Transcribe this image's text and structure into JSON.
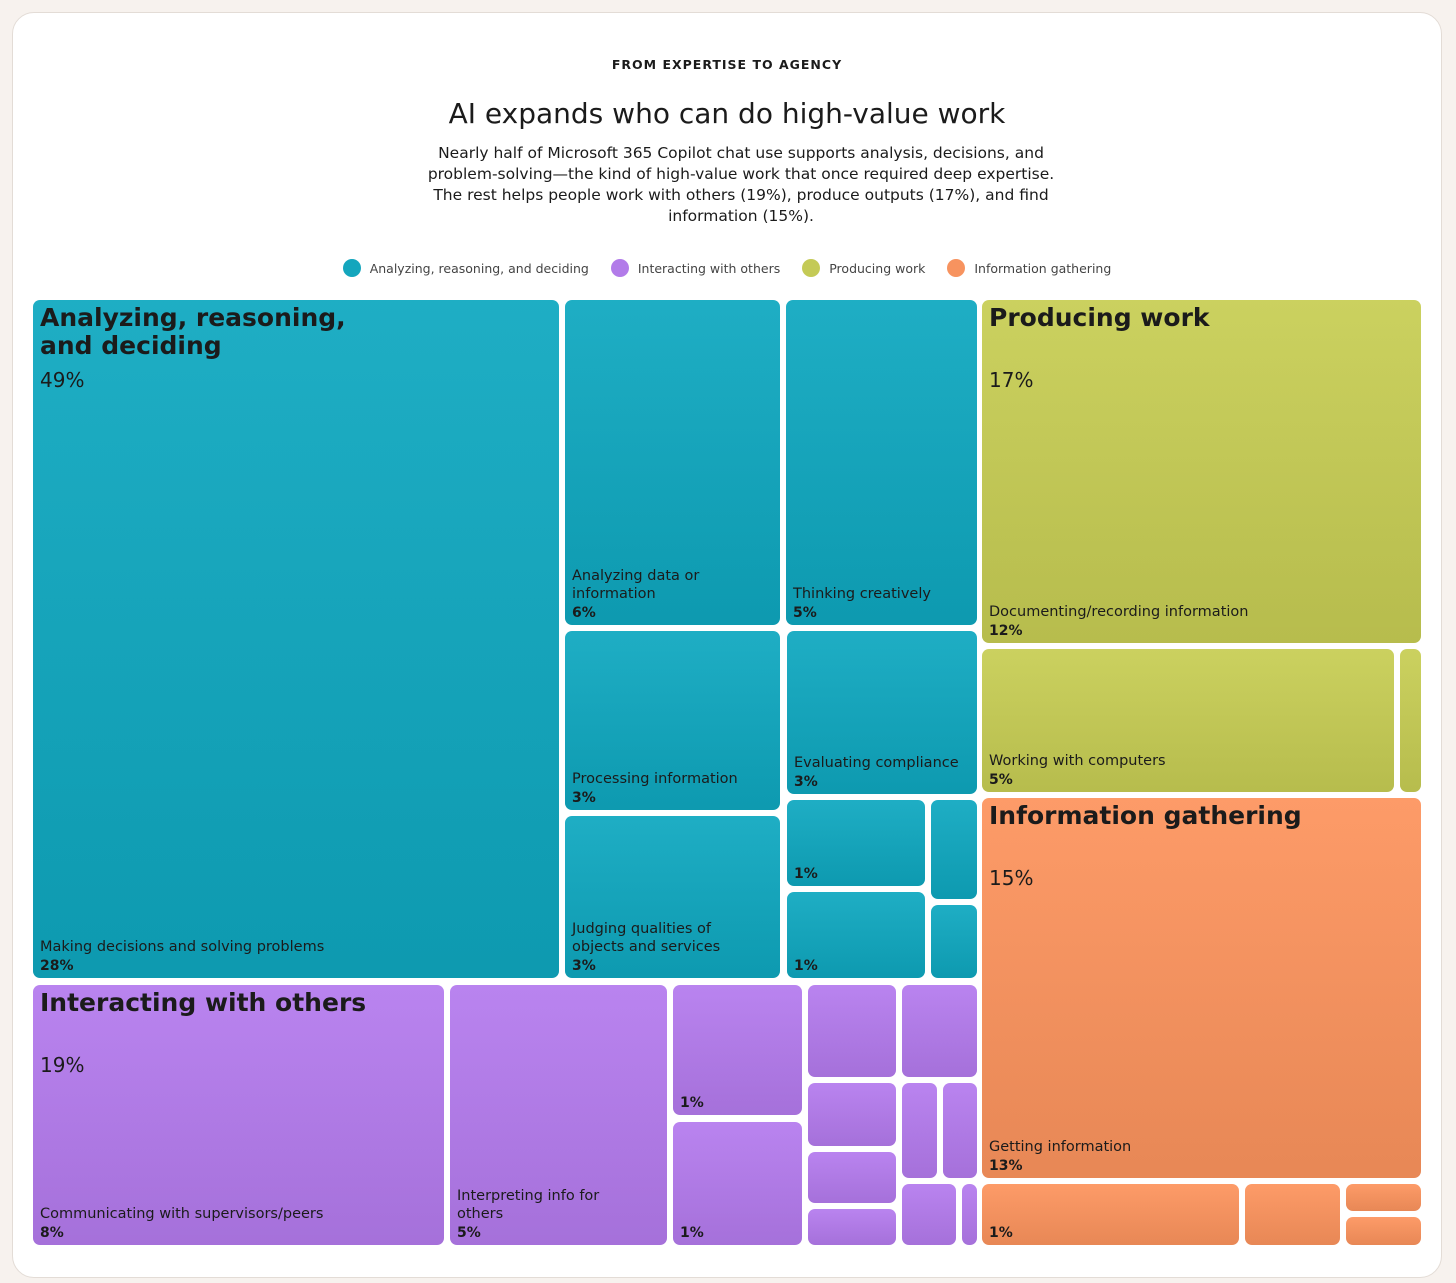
{
  "chart_data": {
    "type": "treemap",
    "kicker": "FROM EXPERTISE TO AGENCY",
    "title": "AI expands who can do high-value work",
    "subtitle": "Nearly half of Microsoft 365 Copilot chat use supports analysis, decisions, and problem-solving—the kind of high-value work that once required deep expertise. The rest helps people work with others (19%), produce outputs (17%), and find information (15%).",
    "groups": [
      {
        "name": "Analyzing, reasoning, and deciding",
        "color": "#14a6bd",
        "value": 49,
        "value_label": "49%",
        "children": {
          "names": [
            "Making decisions and solving problems",
            "Analyzing data or information",
            "Thinking creatively",
            "Processing information",
            "Evaluating compliance",
            "Judging qualities of objects and services",
            null,
            null,
            null,
            null
          ],
          "values": [
            28,
            6,
            5,
            3,
            3,
            3,
            1,
            0.4,
            1,
            0.3
          ],
          "value_labels": [
            "28%",
            "6%",
            "5%",
            "3%",
            "3%",
            "3%",
            "1%",
            null,
            "1%",
            null
          ]
        }
      },
      {
        "name": "Interacting with others",
        "color": "#b27be9",
        "value": 19,
        "value_label": "19%",
        "children": {
          "names": [
            "Communicating with supervisors/peers",
            "Interpreting info for others",
            null,
            null,
            null,
            null,
            null,
            null,
            null,
            null,
            null,
            null,
            null
          ],
          "values": [
            8,
            5,
            1,
            1,
            0.6,
            0.6,
            0.4,
            0.4,
            0.3,
            0.3,
            0.3,
            0.3,
            0.1
          ],
          "value_labels": [
            "8%",
            "5%",
            "1%",
            "1%",
            null,
            null,
            null,
            null,
            null,
            null,
            null,
            null,
            null
          ]
        }
      },
      {
        "name": "Producing work",
        "color": "#c4ca56",
        "value": 17,
        "value_label": "17%",
        "children": {
          "names": [
            "Documenting/recording information",
            "Working with computers",
            null
          ],
          "values": [
            12,
            5,
            0.2
          ],
          "value_labels": [
            "12%",
            "5%",
            null
          ]
        }
      },
      {
        "name": "Information gathering",
        "color": "#f7935f",
        "value": 15,
        "value_label": "15%",
        "children": {
          "names": [
            "Getting information",
            null,
            null,
            null,
            null
          ],
          "values": [
            13,
            1,
            0.5,
            0.2,
            0.2
          ],
          "value_labels": [
            "13%",
            "1%",
            null,
            null,
            null
          ]
        }
      }
    ]
  }
}
